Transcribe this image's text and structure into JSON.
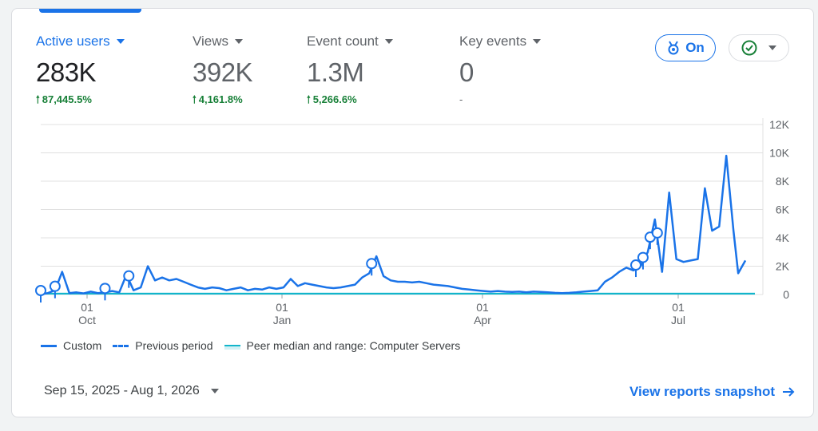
{
  "metrics": [
    {
      "label": "Active users",
      "value": "283K",
      "change": "87,445.5%",
      "trend": "up",
      "active": true
    },
    {
      "label": "Views",
      "value": "392K",
      "change": "4,161.8%",
      "trend": "up",
      "active": false
    },
    {
      "label": "Event count",
      "value": "1.3M",
      "change": "5,266.6%",
      "trend": "up",
      "active": false
    },
    {
      "label": "Key events",
      "value": "0",
      "change": "-",
      "trend": "none",
      "active": false
    }
  ],
  "toggle": {
    "label": "On",
    "icon": "badge-icon"
  },
  "status": {
    "icon": "check-circle-icon"
  },
  "chart_data": {
    "type": "line",
    "y_ticks": [
      "12K",
      "10K",
      "8K",
      "6K",
      "4K",
      "2K",
      "0"
    ],
    "ylim": [
      0,
      12000
    ],
    "x_ticks": [
      {
        "day": "01",
        "month": "Oct"
      },
      {
        "day": "01",
        "month": "Jan"
      },
      {
        "day": "01",
        "month": "Apr"
      },
      {
        "day": "01",
        "month": "Jul"
      }
    ],
    "series": [
      {
        "name": "Custom",
        "style": "solid",
        "color": "#1a73e8",
        "points": [
          [
            0,
            0
          ],
          [
            3,
            100
          ],
          [
            6,
            300
          ],
          [
            9,
            1600
          ],
          [
            12,
            100
          ],
          [
            15,
            150
          ],
          [
            18,
            80
          ],
          [
            21,
            200
          ],
          [
            24,
            100
          ],
          [
            27,
            150
          ],
          [
            30,
            250
          ],
          [
            33,
            150
          ],
          [
            36,
            1400
          ],
          [
            39,
            300
          ],
          [
            42,
            500
          ],
          [
            45,
            2000
          ],
          [
            48,
            1000
          ],
          [
            51,
            1200
          ],
          [
            54,
            1000
          ],
          [
            57,
            1100
          ],
          [
            60,
            900
          ],
          [
            63,
            700
          ],
          [
            66,
            500
          ],
          [
            69,
            400
          ],
          [
            72,
            500
          ],
          [
            75,
            450
          ],
          [
            78,
            300
          ],
          [
            81,
            400
          ],
          [
            84,
            500
          ],
          [
            87,
            300
          ],
          [
            90,
            400
          ],
          [
            93,
            350
          ],
          [
            96,
            500
          ],
          [
            99,
            400
          ],
          [
            102,
            500
          ],
          [
            105,
            1100
          ],
          [
            108,
            600
          ],
          [
            111,
            800
          ],
          [
            114,
            700
          ],
          [
            117,
            600
          ],
          [
            120,
            500
          ],
          [
            123,
            450
          ],
          [
            126,
            500
          ],
          [
            129,
            600
          ],
          [
            132,
            700
          ],
          [
            135,
            1200
          ],
          [
            138,
            1500
          ],
          [
            141,
            2700
          ],
          [
            144,
            1300
          ],
          [
            147,
            1000
          ],
          [
            150,
            900
          ],
          [
            153,
            900
          ],
          [
            156,
            850
          ],
          [
            159,
            900
          ],
          [
            162,
            800
          ],
          [
            165,
            700
          ],
          [
            168,
            650
          ],
          [
            171,
            600
          ],
          [
            174,
            500
          ],
          [
            177,
            400
          ],
          [
            180,
            350
          ],
          [
            183,
            300
          ],
          [
            186,
            250
          ],
          [
            189,
            200
          ],
          [
            192,
            250
          ],
          [
            195,
            200
          ],
          [
            198,
            180
          ],
          [
            201,
            200
          ],
          [
            204,
            150
          ],
          [
            207,
            200
          ],
          [
            210,
            180
          ],
          [
            213,
            150
          ],
          [
            216,
            120
          ],
          [
            219,
            100
          ],
          [
            222,
            120
          ],
          [
            225,
            150
          ],
          [
            228,
            200
          ],
          [
            231,
            250
          ],
          [
            234,
            300
          ],
          [
            237,
            900
          ],
          [
            240,
            1200
          ],
          [
            243,
            1600
          ],
          [
            246,
            1900
          ],
          [
            249,
            1700
          ],
          [
            252,
            2000
          ],
          [
            255,
            3000
          ],
          [
            258,
            5300
          ],
          [
            261,
            1600
          ],
          [
            264,
            7200
          ],
          [
            267,
            2500
          ],
          [
            270,
            2300
          ],
          [
            273,
            2400
          ],
          [
            276,
            2500
          ],
          [
            279,
            7500
          ],
          [
            282,
            4500
          ],
          [
            285,
            4800
          ],
          [
            288,
            9800
          ],
          [
            291,
            4500
          ],
          [
            293,
            1500
          ],
          [
            296,
            2400
          ]
        ]
      },
      {
        "name": "Previous period",
        "style": "dashed",
        "color": "#1a73e8"
      },
      {
        "name": "Peer median and range: Computer Servers",
        "style": "band",
        "color": "#12b5cb"
      }
    ],
    "annotations": [
      0,
      6,
      27,
      37,
      139,
      250,
      253,
      256,
      259
    ]
  },
  "date_range": {
    "label": "Sep 15, 2025 - Aug 1, 2026"
  },
  "view_link": {
    "label": "View reports snapshot"
  }
}
